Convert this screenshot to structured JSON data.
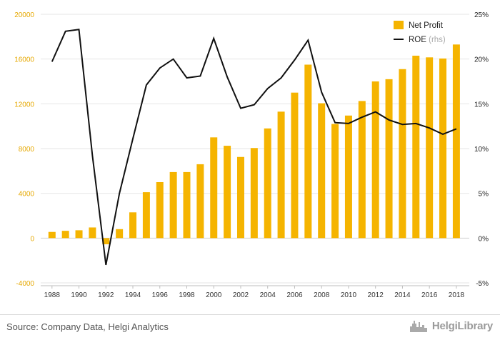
{
  "chart_data": {
    "type": "bar+line",
    "x_tick_labels": [
      "1988",
      "1990",
      "1992",
      "1994",
      "1996",
      "1998",
      "2000",
      "2002",
      "2004",
      "2006",
      "2008",
      "2010",
      "2012",
      "2014",
      "2016",
      "2018"
    ],
    "years": [
      1988,
      1989,
      1990,
      1991,
      1992,
      1993,
      1994,
      1995,
      1996,
      1997,
      1998,
      1999,
      2000,
      2001,
      2002,
      2003,
      2004,
      2005,
      2006,
      2007,
      2008,
      2009,
      2010,
      2011,
      2012,
      2013,
      2014,
      2015,
      2016,
      2017,
      2018
    ],
    "series": [
      {
        "name": "Net Profit",
        "type": "bar",
        "axis": "left",
        "color": "#f5b400",
        "values": [
          550,
          650,
          700,
          950,
          -550,
          800,
          2300,
          4100,
          5000,
          5900,
          5900,
          6600,
          9000,
          8250,
          7250,
          8050,
          9800,
          11300,
          13000,
          15500,
          12050,
          10200,
          10950,
          12250,
          14000,
          14200,
          15100,
          16300,
          16150,
          16050,
          17300
        ]
      },
      {
        "name": "ROE",
        "name_suffix": "(rhs)",
        "type": "line",
        "axis": "right",
        "color": "#111111",
        "values": [
          19.7,
          23.1,
          23.3,
          9.2,
          -3.0,
          5.0,
          11.1,
          17.1,
          19.0,
          20.0,
          17.9,
          18.1,
          22.3,
          18.0,
          14.5,
          14.9,
          16.7,
          17.9,
          19.9,
          22.1,
          16.3,
          12.9,
          12.8,
          13.5,
          14.1,
          13.2,
          12.7,
          12.8,
          12.3,
          11.6,
          12.2
        ]
      }
    ],
    "y_left": {
      "ticks": [
        -4000,
        0,
        4000,
        8000,
        12000,
        16000,
        20000
      ],
      "ylim": [
        -4000,
        20000
      ],
      "tick_color": "#e6a800"
    },
    "y_right": {
      "ticks": [
        "-5%",
        "0%",
        "5%",
        "10%",
        "15%",
        "20%",
        "25%"
      ],
      "ylim": [
        -5,
        25
      ]
    },
    "grid": "horizontal",
    "legend_position": "top-right"
  },
  "footer": {
    "source": "Source: Company Data, Helgi Analytics",
    "logo": "HelgiLibrary"
  }
}
